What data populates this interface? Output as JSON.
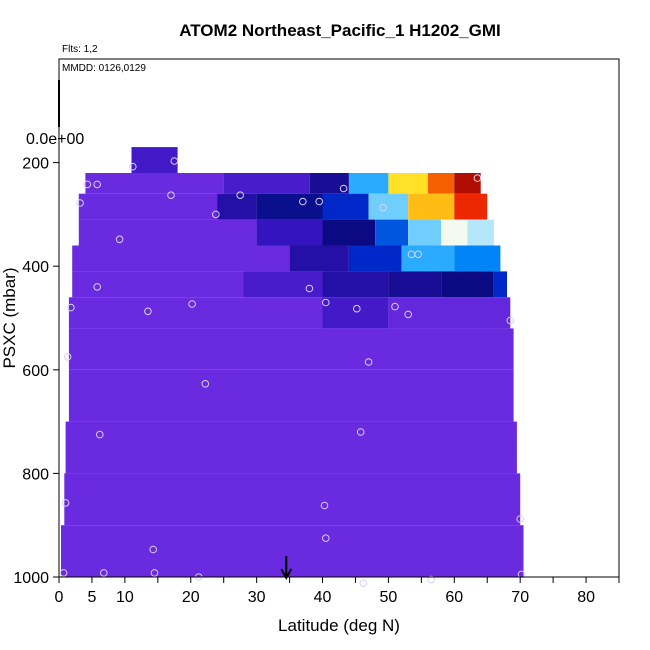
{
  "chart_data": {
    "type": "heatmap",
    "title": "ATOM2 Northeast_Pacific_1 H1202_GMI",
    "annotations": {
      "flights": "Flts: 1,2",
      "dates": "MMDD: 0126,0129",
      "colorbar_zero_label": "0.0e+00"
    },
    "xlabel": "Latitude (deg N)",
    "ylabel": "PSXC (mbar)",
    "xlim": [
      0,
      85
    ],
    "ylim": [
      1000,
      0
    ],
    "x_ticks": [
      0,
      5,
      10,
      20,
      30,
      40,
      50,
      60,
      70,
      80
    ],
    "y_ticks": [
      200,
      400,
      600,
      800,
      1000
    ],
    "arrow_marker_lat": 34.5,
    "colors": {
      "background_field": "#6a2ae0",
      "frame": "#000000",
      "points": "#d9d0f5"
    },
    "bands": [
      {
        "p_top": 170,
        "p_bot": 220,
        "segments": [
          [
            11,
            18,
            0.06
          ]
        ]
      },
      {
        "p_top": 220,
        "p_bot": 260,
        "segments": [
          [
            4,
            25,
            0.0
          ],
          [
            25,
            38,
            0.05
          ],
          [
            38,
            44,
            0.15
          ],
          [
            44,
            50,
            0.45
          ],
          [
            50,
            56,
            0.7
          ],
          [
            56,
            60,
            0.85
          ],
          [
            60,
            64,
            0.97
          ]
        ]
      },
      {
        "p_top": 260,
        "p_bot": 310,
        "segments": [
          [
            3,
            24,
            0.0
          ],
          [
            24,
            30,
            0.12
          ],
          [
            30,
            40,
            0.2
          ],
          [
            40,
            47,
            0.3
          ],
          [
            47,
            53,
            0.5
          ],
          [
            53,
            60,
            0.75
          ],
          [
            60,
            65,
            0.9
          ]
        ]
      },
      {
        "p_top": 310,
        "p_bot": 360,
        "segments": [
          [
            3,
            30,
            0.0
          ],
          [
            30,
            40,
            0.08
          ],
          [
            40,
            48,
            0.18
          ],
          [
            48,
            53,
            0.35
          ],
          [
            53,
            58,
            0.5
          ],
          [
            58,
            62,
            0.6
          ],
          [
            62,
            66,
            0.55
          ]
        ]
      },
      {
        "p_top": 360,
        "p_bot": 410,
        "segments": [
          [
            2,
            35,
            0.0
          ],
          [
            35,
            44,
            0.12
          ],
          [
            44,
            52,
            0.3
          ],
          [
            52,
            60,
            0.45
          ],
          [
            60,
            67,
            0.4
          ]
        ]
      },
      {
        "p_top": 410,
        "p_bot": 460,
        "segments": [
          [
            2,
            28,
            0.0
          ],
          [
            28,
            40,
            0.05
          ],
          [
            40,
            50,
            0.12
          ],
          [
            50,
            58,
            0.15
          ],
          [
            58,
            66,
            0.18
          ],
          [
            66,
            68,
            0.3
          ]
        ]
      },
      {
        "p_top": 460,
        "p_bot": 520,
        "segments": [
          [
            1.5,
            40,
            0.0
          ],
          [
            40,
            50,
            0.06
          ],
          [
            50,
            68.5,
            0.01
          ]
        ]
      },
      {
        "p_top": 520,
        "p_bot": 600,
        "segments": [
          [
            1.5,
            69,
            0.0
          ]
        ]
      },
      {
        "p_top": 600,
        "p_bot": 700,
        "segments": [
          [
            1.5,
            69,
            0.0
          ]
        ]
      },
      {
        "p_top": 700,
        "p_bot": 800,
        "segments": [
          [
            1,
            69.5,
            0.0
          ]
        ]
      },
      {
        "p_top": 800,
        "p_bot": 900,
        "segments": [
          [
            0.8,
            70,
            0.0
          ]
        ]
      },
      {
        "p_top": 900,
        "p_bot": 1000,
        "segments": [
          [
            0.3,
            70.5,
            0.0
          ]
        ]
      }
    ],
    "points": [
      {
        "lat": 11.2,
        "p": 208
      },
      {
        "lat": 17.5,
        "p": 197
      },
      {
        "lat": 4.3,
        "p": 242
      },
      {
        "lat": 5.8,
        "p": 242
      },
      {
        "lat": 3.2,
        "p": 278
      },
      {
        "lat": 17.0,
        "p": 263
      },
      {
        "lat": 23.8,
        "p": 300
      },
      {
        "lat": 27.5,
        "p": 263
      },
      {
        "lat": 9.2,
        "p": 348
      },
      {
        "lat": 37.0,
        "p": 275
      },
      {
        "lat": 39.5,
        "p": 275
      },
      {
        "lat": 43.2,
        "p": 250
      },
      {
        "lat": 49.2,
        "p": 287
      },
      {
        "lat": 53.5,
        "p": 377
      },
      {
        "lat": 54.5,
        "p": 377
      },
      {
        "lat": 63.5,
        "p": 230
      },
      {
        "lat": 5.8,
        "p": 440
      },
      {
        "lat": 1.8,
        "p": 480
      },
      {
        "lat": 13.5,
        "p": 487
      },
      {
        "lat": 20.2,
        "p": 473
      },
      {
        "lat": 38.0,
        "p": 443
      },
      {
        "lat": 40.5,
        "p": 470
      },
      {
        "lat": 45.2,
        "p": 482
      },
      {
        "lat": 51.0,
        "p": 478
      },
      {
        "lat": 53.0,
        "p": 493
      },
      {
        "lat": 68.5,
        "p": 505
      },
      {
        "lat": 1.3,
        "p": 575
      },
      {
        "lat": 22.2,
        "p": 627
      },
      {
        "lat": 47.0,
        "p": 585
      },
      {
        "lat": 6.2,
        "p": 725
      },
      {
        "lat": 45.8,
        "p": 720
      },
      {
        "lat": 1.0,
        "p": 857
      },
      {
        "lat": 40.3,
        "p": 862
      },
      {
        "lat": 70.0,
        "p": 888
      },
      {
        "lat": 40.5,
        "p": 925
      },
      {
        "lat": 14.3,
        "p": 947
      },
      {
        "lat": 0.7,
        "p": 992
      },
      {
        "lat": 6.8,
        "p": 992
      },
      {
        "lat": 14.5,
        "p": 992
      },
      {
        "lat": 21.2,
        "p": 1000
      },
      {
        "lat": 46.2,
        "p": 1012
      },
      {
        "lat": 56.5,
        "p": 1005
      },
      {
        "lat": 70.2,
        "p": 995
      }
    ]
  }
}
